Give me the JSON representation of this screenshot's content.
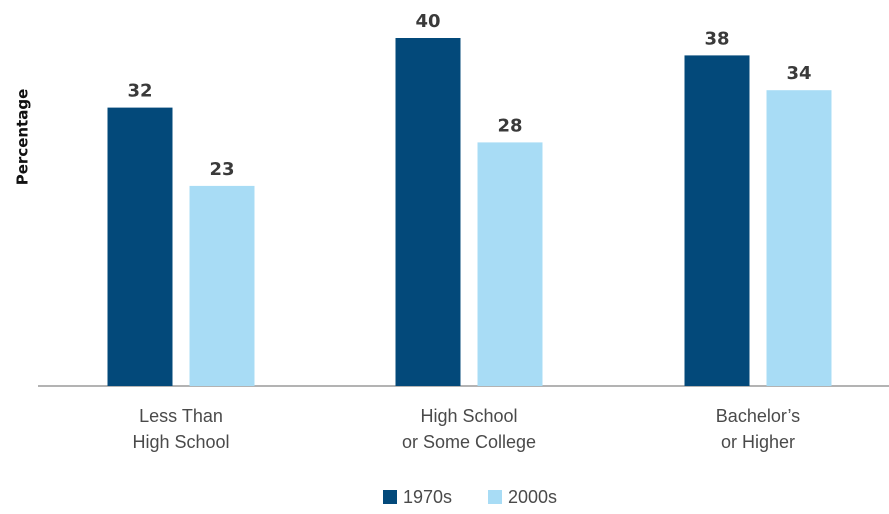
{
  "chart_data": {
    "type": "bar",
    "title": "",
    "xlabel": "",
    "ylabel": "Percentage",
    "categories": [
      [
        "Less Than",
        "High School"
      ],
      [
        "High School",
        "or Some College"
      ],
      [
        "Bachelor’s",
        "or Higher"
      ]
    ],
    "series": [
      {
        "name": "1970s",
        "values": [
          32,
          40,
          38
        ],
        "color": "#03497a"
      },
      {
        "name": "2000s",
        "values": [
          23,
          28,
          34
        ],
        "color": "#a8dcf5"
      }
    ],
    "ylim": [
      0,
      44
    ],
    "grid": false,
    "legend_position": "bottom-center",
    "value_labels": true
  }
}
